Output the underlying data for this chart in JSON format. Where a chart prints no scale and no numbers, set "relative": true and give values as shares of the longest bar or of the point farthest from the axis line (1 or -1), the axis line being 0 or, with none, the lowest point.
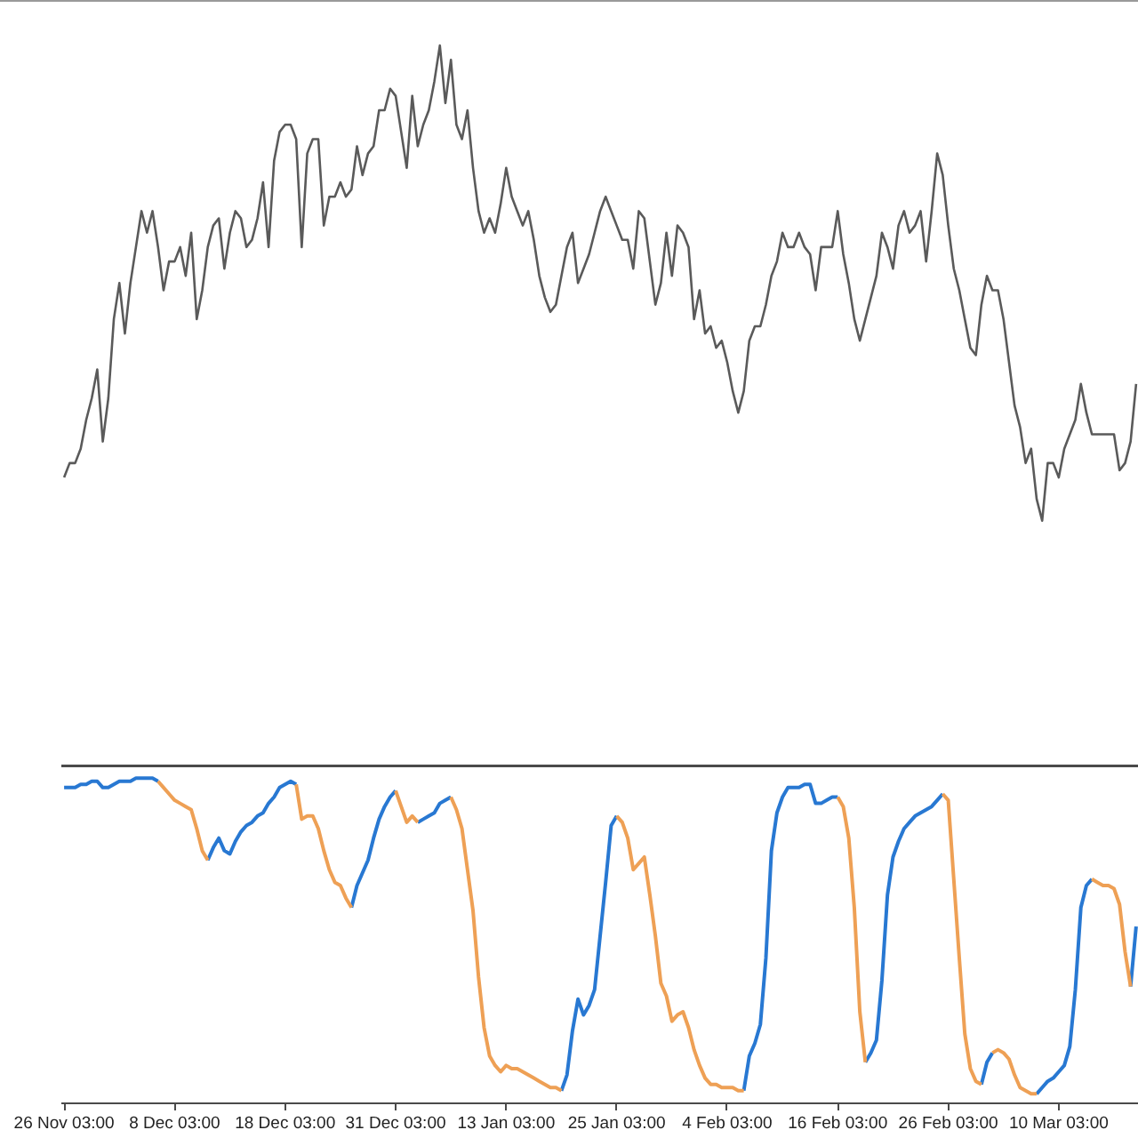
{
  "chart_data": [
    {
      "type": "line",
      "relative": true,
      "color": "#5a5a5a",
      "categories": [
        null,
        null,
        null,
        null,
        null,
        null,
        null,
        null,
        null,
        null,
        null,
        null,
        null,
        null,
        null,
        null,
        null,
        null,
        null,
        null,
        null,
        null,
        null,
        null,
        null,
        null,
        null,
        null,
        null,
        null,
        null,
        null,
        null,
        null,
        null,
        null,
        null,
        null,
        null,
        null,
        null,
        null,
        null,
        null,
        null,
        null,
        null,
        null,
        null,
        null,
        null,
        null,
        null,
        null,
        null,
        null,
        null,
        null,
        null,
        null,
        null,
        null,
        null,
        null,
        null,
        null,
        null,
        null,
        null,
        null,
        null,
        null,
        null,
        null,
        null,
        null,
        null,
        null,
        null,
        null,
        null,
        null,
        null,
        null,
        null,
        null,
        null,
        null,
        null,
        null,
        null,
        null,
        null,
        null,
        null,
        null,
        null,
        null,
        null,
        null,
        null,
        null,
        null,
        null,
        null,
        null,
        null,
        null,
        null,
        null,
        null,
        null,
        null,
        null,
        null,
        null,
        null,
        null,
        null,
        null,
        null,
        null,
        null,
        null,
        null,
        null,
        null,
        null,
        null,
        null,
        null,
        null,
        null,
        null,
        null,
        null,
        null,
        null,
        null,
        null,
        null,
        null,
        null,
        null,
        null,
        null,
        null,
        null,
        null,
        null,
        null,
        null,
        null,
        null,
        null,
        null,
        null,
        null,
        null,
        null,
        null,
        null,
        null,
        null,
        null,
        null,
        null,
        null,
        null,
        null,
        null,
        null,
        null,
        null,
        null,
        null,
        null,
        null,
        null,
        null,
        null,
        null,
        null,
        null,
        null,
        null,
        null,
        null,
        null,
        null,
        null,
        null,
        null,
        null,
        null
      ],
      "values": [
        0.4,
        0.42,
        0.42,
        0.44,
        0.48,
        0.51,
        0.55,
        0.45,
        0.51,
        0.62,
        0.67,
        0.6,
        0.67,
        0.72,
        0.77,
        0.74,
        0.77,
        0.72,
        0.66,
        0.7,
        0.7,
        0.72,
        0.68,
        0.74,
        0.62,
        0.66,
        0.72,
        0.75,
        0.76,
        0.69,
        0.74,
        0.77,
        0.76,
        0.72,
        0.73,
        0.76,
        0.81,
        0.72,
        0.84,
        0.88,
        0.89,
        0.89,
        0.87,
        0.72,
        0.85,
        0.87,
        0.87,
        0.75,
        0.79,
        0.79,
        0.81,
        0.79,
        0.8,
        0.86,
        0.82,
        0.85,
        0.86,
        0.91,
        0.91,
        0.94,
        0.93,
        0.88,
        0.83,
        0.93,
        0.86,
        0.89,
        0.91,
        0.95,
        1.0,
        0.92,
        0.98,
        0.89,
        0.87,
        0.91,
        0.83,
        0.77,
        0.74,
        0.76,
        0.74,
        0.78,
        0.83,
        0.79,
        0.77,
        0.75,
        0.77,
        0.73,
        0.68,
        0.65,
        0.63,
        0.64,
        0.68,
        0.72,
        0.74,
        0.67,
        0.69,
        0.71,
        0.74,
        0.77,
        0.79,
        0.77,
        0.75,
        0.73,
        0.73,
        0.69,
        0.77,
        0.76,
        0.7,
        0.64,
        0.67,
        0.74,
        0.68,
        0.75,
        0.74,
        0.72,
        0.62,
        0.66,
        0.6,
        0.61,
        0.58,
        0.59,
        0.56,
        0.52,
        0.49,
        0.52,
        0.59,
        0.61,
        0.61,
        0.64,
        0.68,
        0.7,
        0.74,
        0.72,
        0.72,
        0.74,
        0.72,
        0.71,
        0.66,
        0.72,
        0.72,
        0.72,
        0.77,
        0.71,
        0.67,
        0.62,
        0.59,
        0.62,
        0.65,
        0.68,
        0.74,
        0.72,
        0.69,
        0.75,
        0.77,
        0.74,
        0.75,
        0.77,
        0.7,
        0.77,
        0.85,
        0.82,
        0.75,
        0.69,
        0.66,
        0.62,
        0.58,
        0.57,
        0.64,
        0.68,
        0.66,
        0.66,
        0.62,
        0.56,
        0.5,
        0.47,
        0.42,
        0.44,
        0.37,
        0.34,
        0.42,
        0.42,
        0.4,
        0.44,
        0.46,
        0.48,
        0.53,
        0.49,
        0.46,
        0.46,
        0.46,
        0.46,
        0.46,
        0.41,
        0.42,
        0.45,
        0.53
      ]
    },
    {
      "type": "line",
      "relative": true,
      "tick_labels": "x",
      "categories": [
        "26 Nov 03:00",
        null,
        null,
        null,
        null,
        null,
        null,
        null,
        null,
        null,
        null,
        null,
        null,
        null,
        null,
        null,
        null,
        null,
        null,
        null,
        "8 Dec 03:00",
        null,
        null,
        null,
        null,
        null,
        null,
        null,
        null,
        null,
        null,
        null,
        null,
        null,
        null,
        null,
        null,
        null,
        null,
        null,
        "18 Dec 03:00",
        null,
        null,
        null,
        null,
        null,
        null,
        null,
        null,
        null,
        null,
        null,
        null,
        null,
        null,
        null,
        null,
        null,
        null,
        null,
        "31 Dec 03:00",
        null,
        null,
        null,
        null,
        null,
        null,
        null,
        null,
        null,
        null,
        null,
        null,
        null,
        null,
        null,
        null,
        null,
        null,
        null,
        "13 Jan 03:00",
        null,
        null,
        null,
        null,
        null,
        null,
        null,
        null,
        null,
        null,
        null,
        null,
        null,
        null,
        null,
        null,
        null,
        null,
        null,
        "25 Jan 03:00",
        null,
        null,
        null,
        null,
        null,
        null,
        null,
        null,
        null,
        null,
        null,
        null,
        null,
        null,
        null,
        null,
        null,
        null,
        null,
        "4 Feb 03:00",
        null,
        null,
        null,
        null,
        null,
        null,
        null,
        null,
        null,
        null,
        null,
        null,
        null,
        null,
        null,
        null,
        null,
        null,
        null,
        "16 Feb 03:00",
        null,
        null,
        null,
        null,
        null,
        null,
        null,
        null,
        null,
        null,
        null,
        null,
        null,
        null,
        null,
        null,
        null,
        null,
        null,
        "26 Feb 03:00",
        null,
        null,
        null,
        null,
        null,
        null,
        null,
        null,
        null,
        null,
        null,
        null,
        null,
        null,
        null,
        null,
        null,
        null,
        null,
        "10 Mar 03:00",
        null,
        null,
        null,
        null,
        null,
        null,
        null,
        null,
        null,
        null,
        null,
        null,
        null,
        null
      ],
      "series": [
        {
          "color": "#2878d2",
          "values": [
            0.97,
            0.97,
            0.97,
            0.98,
            0.98,
            0.99,
            0.99,
            0.97,
            0.97,
            0.98,
            0.99,
            0.99,
            0.99,
            1.0,
            1.0,
            1.0,
            1.0,
            0.99,
            null,
            null,
            null,
            null,
            null,
            null,
            null,
            null,
            0.74,
            0.78,
            0.81,
            0.77,
            0.76,
            0.8,
            0.83,
            0.85,
            0.86,
            0.88,
            0.89,
            0.92,
            0.94,
            0.97,
            0.98,
            0.99,
            0.98,
            null,
            null,
            null,
            null,
            null,
            null,
            null,
            null,
            null,
            0.59,
            0.66,
            0.7,
            0.74,
            0.81,
            0.87,
            0.91,
            0.94,
            0.96,
            null,
            null,
            null,
            0.86,
            0.87,
            0.88,
            0.89,
            0.92,
            0.93,
            0.94,
            null,
            null,
            null,
            null,
            null,
            null,
            null,
            null,
            null,
            null,
            null,
            null,
            null,
            null,
            null,
            null,
            null,
            null,
            null,
            0.01,
            0.06,
            0.2,
            0.3,
            0.25,
            0.28,
            0.33,
            0.5,
            0.67,
            0.85,
            0.88,
            null,
            null,
            null,
            null,
            null,
            null,
            null,
            null,
            null,
            null,
            null,
            null,
            null,
            null,
            null,
            null,
            null,
            null,
            null,
            null,
            null,
            null,
            0.01,
            0.12,
            0.16,
            0.22,
            0.43,
            0.77,
            0.89,
            0.94,
            0.97,
            0.97,
            0.97,
            0.98,
            0.98,
            0.92,
            0.92,
            0.93,
            0.94,
            0.94,
            null,
            null,
            null,
            null,
            0.1,
            0.13,
            0.17,
            0.36,
            0.63,
            0.75,
            0.8,
            0.84,
            0.86,
            0.88,
            0.89,
            0.9,
            0.91,
            0.93,
            0.95,
            null,
            null,
            null,
            null,
            null,
            null,
            0.03,
            0.1,
            0.13,
            null,
            null,
            null,
            null,
            null,
            null,
            null,
            0.0,
            0.02,
            0.04,
            0.05,
            0.07,
            0.09,
            0.15,
            0.33,
            0.59,
            0.66,
            0.68,
            null,
            null,
            null,
            null,
            null,
            null,
            0.34,
            0.53
          ]
        },
        {
          "color": "#eea055",
          "values": [
            null,
            null,
            null,
            null,
            null,
            null,
            null,
            null,
            null,
            null,
            null,
            null,
            null,
            null,
            null,
            null,
            null,
            0.99,
            0.97,
            0.95,
            0.93,
            0.92,
            0.91,
            0.9,
            0.84,
            0.77,
            0.74,
            null,
            null,
            null,
            null,
            null,
            null,
            null,
            null,
            null,
            null,
            null,
            null,
            null,
            null,
            null,
            0.98,
            0.87,
            0.88,
            0.88,
            0.84,
            0.77,
            0.71,
            0.67,
            0.66,
            0.62,
            0.59,
            null,
            null,
            null,
            null,
            null,
            null,
            null,
            0.96,
            0.91,
            0.86,
            0.88,
            0.86,
            null,
            null,
            null,
            null,
            null,
            0.94,
            0.9,
            0.84,
            0.71,
            0.58,
            0.37,
            0.21,
            0.12,
            0.09,
            0.07,
            0.09,
            0.08,
            0.08,
            0.07,
            0.06,
            0.05,
            0.04,
            0.03,
            0.02,
            0.02,
            0.01,
            null,
            null,
            null,
            null,
            null,
            null,
            null,
            null,
            null,
            0.88,
            0.86,
            0.81,
            0.71,
            0.73,
            0.75,
            0.63,
            0.5,
            0.35,
            0.31,
            0.23,
            0.25,
            0.26,
            0.21,
            0.14,
            0.09,
            0.05,
            0.03,
            0.03,
            0.02,
            0.02,
            0.02,
            0.01,
            0.01,
            null,
            null,
            null,
            null,
            null,
            null,
            null,
            null,
            null,
            null,
            null,
            null,
            null,
            null,
            null,
            null,
            0.94,
            0.91,
            0.81,
            0.59,
            0.26,
            0.1,
            null,
            null,
            null,
            null,
            null,
            null,
            null,
            null,
            null,
            null,
            null,
            null,
            null,
            0.95,
            0.93,
            0.68,
            0.43,
            0.19,
            0.08,
            0.04,
            0.03,
            null,
            0.13,
            0.14,
            0.13,
            0.11,
            0.06,
            0.02,
            0.01,
            0.0,
            0.0,
            null,
            null,
            null,
            null,
            null,
            null,
            null,
            null,
            null,
            0.68,
            0.67,
            0.66,
            0.66,
            0.65,
            0.6,
            0.45,
            0.34,
            null
          ]
        }
      ]
    }
  ]
}
